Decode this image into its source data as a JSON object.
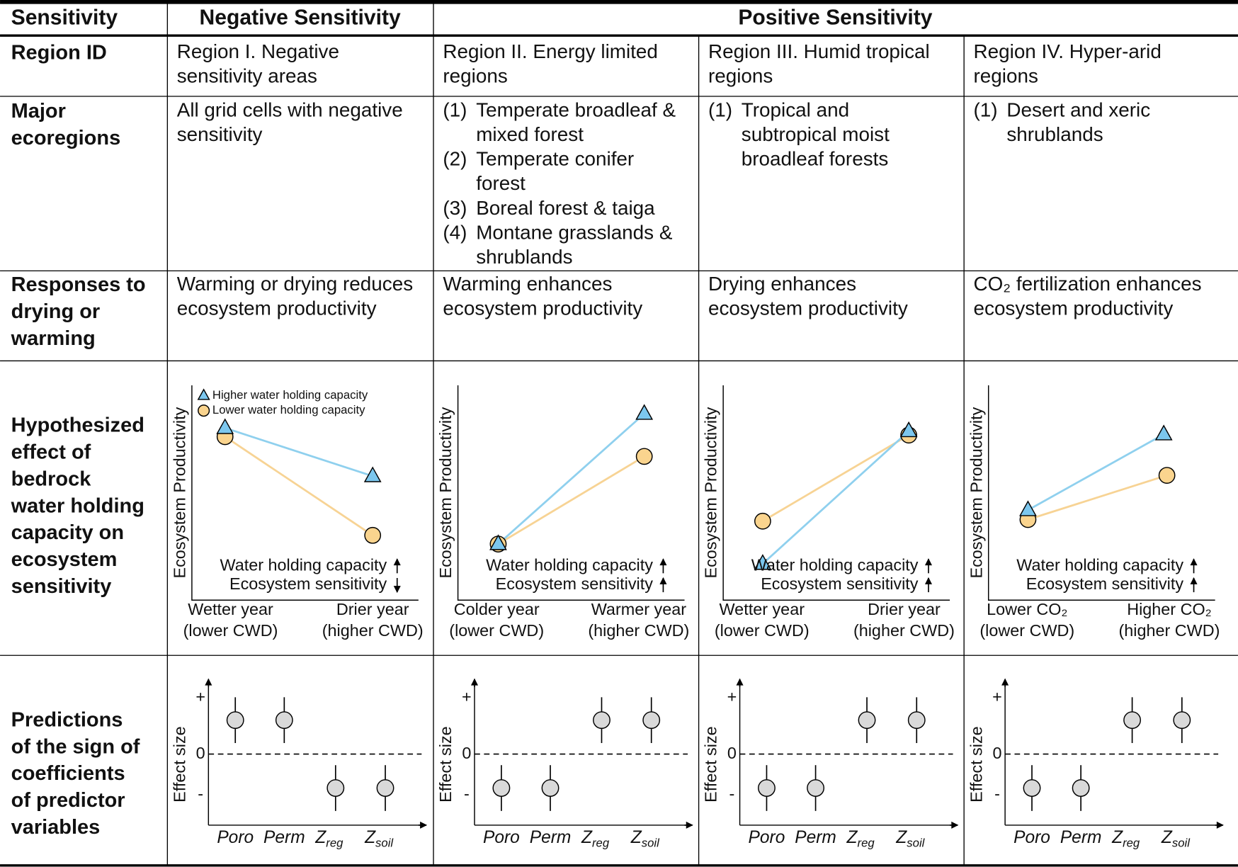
{
  "header": {
    "row_label": "Sensitivity",
    "negative": "Negative Sensitivity",
    "positive": "Positive Sensitivity"
  },
  "row_labels": {
    "region_id": [
      "Region ID"
    ],
    "ecoregions": [
      "Major",
      "ecoregions"
    ],
    "responses": [
      "Responses to",
      "drying or",
      "warming"
    ],
    "hypothesized": [
      "Hypothesized",
      "effect of",
      "bedrock",
      "water holding",
      "capacity on",
      "ecosystem",
      "sensitivity"
    ],
    "predictions": [
      "Predictions",
      "of the sign of",
      "coefficients",
      "of predictor",
      "variables"
    ]
  },
  "regions": [
    {
      "region_id": [
        "Region I. Negative",
        "sensitivity areas"
      ],
      "ecoregions": [
        {
          "lines": [
            "All grid cells with negative",
            "sensitivity"
          ]
        }
      ],
      "response": [
        "Warming or drying reduces",
        "ecosystem productivity"
      ],
      "hypothesis": {
        "y_label": "Ecosystem Productivity",
        "x_left": [
          "Wetter year",
          "(lower CWD)"
        ],
        "x_right": [
          "Drier year",
          "(higher CWD)"
        ],
        "annotations": [
          "Water holding capacity",
          "Ecosystem sensitivity"
        ],
        "whc_arrow": "up",
        "sensitivity_arrow": "down",
        "legend": [
          "Higher water holding capacity",
          "Lower water holding capacity"
        ]
      },
      "prediction": {
        "y_label": "Effect size",
        "y_ticks": [
          "+",
          "0",
          "-"
        ],
        "predictors": [
          {
            "name": "Poro"
          },
          {
            "name": "Perm"
          },
          {
            "name": "Z",
            "sub": "reg"
          },
          {
            "name": "Z",
            "sub": "soil"
          }
        ],
        "direction": [
          "positive",
          "positive",
          "negative",
          "negative"
        ]
      }
    },
    {
      "region_id": [
        "Region II. Energy limited",
        "regions"
      ],
      "ecoregions": [
        {
          "number": "(1)",
          "lines": [
            "Temperate broadleaf &",
            "mixed forest"
          ]
        },
        {
          "number": "(2)",
          "lines": [
            "Temperate conifer",
            "forest"
          ]
        },
        {
          "number": "(3)",
          "lines": [
            "Boreal forest & taiga"
          ]
        },
        {
          "number": "(4)",
          "lines": [
            "Montane grasslands &",
            "shrublands"
          ]
        }
      ],
      "response": [
        "Warming enhances",
        "ecosystem productivity"
      ],
      "hypothesis": {
        "y_label": "Ecosystem Productivity",
        "x_left": [
          "Colder year",
          "(lower CWD)"
        ],
        "x_right": [
          "Warmer year",
          "(higher CWD)"
        ],
        "annotations": [
          "Water holding capacity",
          "Ecosystem sensitivity"
        ],
        "whc_arrow": "up",
        "sensitivity_arrow": "up"
      },
      "prediction": {
        "y_label": "Effect size",
        "y_ticks": [
          "+",
          "0",
          "-"
        ],
        "predictors": [
          {
            "name": "Poro"
          },
          {
            "name": "Perm"
          },
          {
            "name": "Z",
            "sub": "reg"
          },
          {
            "name": "Z",
            "sub": "soil"
          }
        ],
        "direction": [
          "negative",
          "negative",
          "positive",
          "positive"
        ]
      }
    },
    {
      "region_id": [
        "Region III. Humid tropical",
        "regions"
      ],
      "ecoregions": [
        {
          "number": "(1)",
          "lines": [
            "Tropical and",
            "subtropical moist",
            "broadleaf forests"
          ]
        }
      ],
      "response": [
        "Drying enhances",
        "ecosystem productivity"
      ],
      "hypothesis": {
        "y_label": "Ecosystem Productivity",
        "x_left": [
          "Wetter year",
          "(lower CWD)"
        ],
        "x_right": [
          "Drier year",
          "(higher CWD)"
        ],
        "annotations": [
          "Water holding capacity",
          "Ecosystem sensitivity"
        ],
        "whc_arrow": "up",
        "sensitivity_arrow": "up"
      },
      "prediction": {
        "y_label": "Effect size",
        "y_ticks": [
          "+",
          "0",
          "-"
        ],
        "predictors": [
          {
            "name": "Poro"
          },
          {
            "name": "Perm"
          },
          {
            "name": "Z",
            "sub": "reg"
          },
          {
            "name": "Z",
            "sub": "soil"
          }
        ],
        "direction": [
          "negative",
          "negative",
          "positive",
          "positive"
        ]
      }
    },
    {
      "region_id": [
        "Region IV. Hyper-arid",
        "regions"
      ],
      "ecoregions": [
        {
          "number": "(1)",
          "lines": [
            "Desert and xeric",
            "shrublands"
          ]
        }
      ],
      "response": [
        "CO₂ fertilization enhances",
        "ecosystem productivity"
      ],
      "hypothesis": {
        "y_label": "Ecosystem Productivity",
        "x_left": [
          "Lower CO₂",
          "(lower CWD)"
        ],
        "x_right": [
          "Higher CO₂",
          "(higher CWD)"
        ],
        "annotations": [
          "Water holding capacity",
          "Ecosystem sensitivity"
        ],
        "whc_arrow": "up",
        "sensitivity_arrow": "up"
      },
      "prediction": {
        "y_label": "Effect size",
        "y_ticks": [
          "+",
          "0",
          "-"
        ],
        "predictors": [
          {
            "name": "Poro"
          },
          {
            "name": "Perm"
          },
          {
            "name": "Z",
            "sub": "reg"
          },
          {
            "name": "Z",
            "sub": "soil"
          }
        ],
        "direction": [
          "negative",
          "negative",
          "positive",
          "positive"
        ]
      }
    }
  ]
}
